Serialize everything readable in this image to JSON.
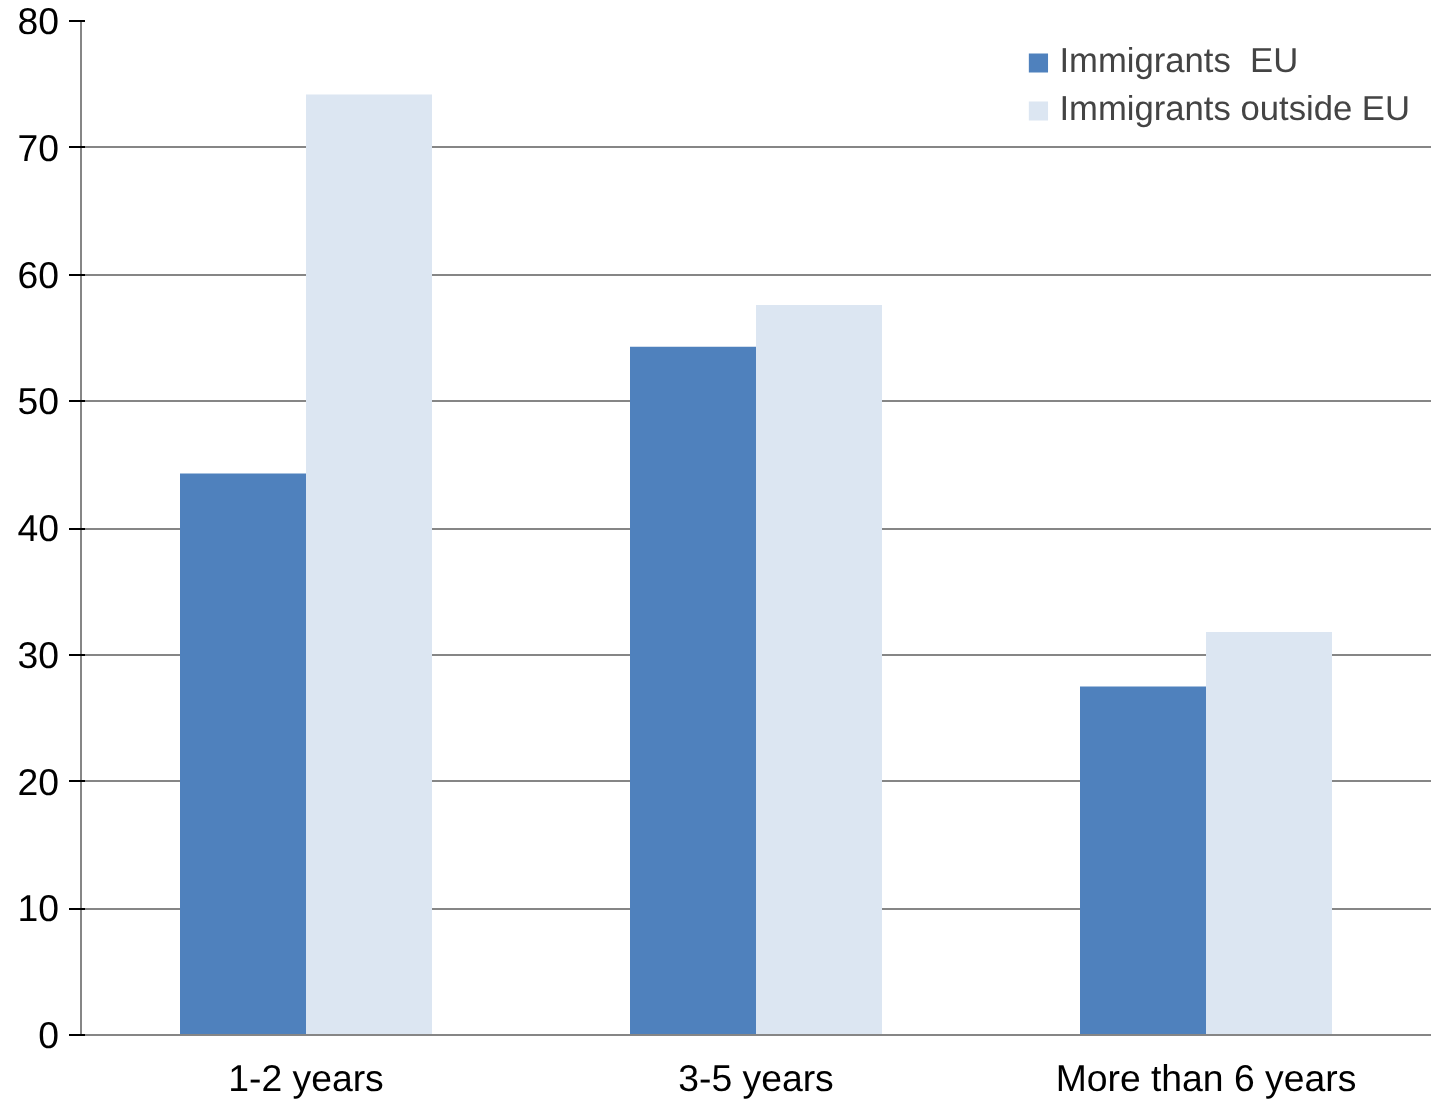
{
  "chart_data": {
    "type": "bar",
    "categories": [
      "1-2 years",
      "3-5 years",
      "More than 6 years"
    ],
    "series": [
      {
        "name": "Immigrants  EU",
        "color": "#4f81bd",
        "values": [
          44.3,
          54.3,
          27.5
        ]
      },
      {
        "name": "Immigrants outside EU",
        "color": "#dce6f2",
        "values": [
          74.2,
          57.6,
          31.8
        ]
      }
    ],
    "ylim": [
      0,
      80
    ],
    "yticks": [
      0,
      10,
      20,
      30,
      40,
      50,
      60,
      70,
      80
    ],
    "grid": "y",
    "legend": "top right"
  }
}
